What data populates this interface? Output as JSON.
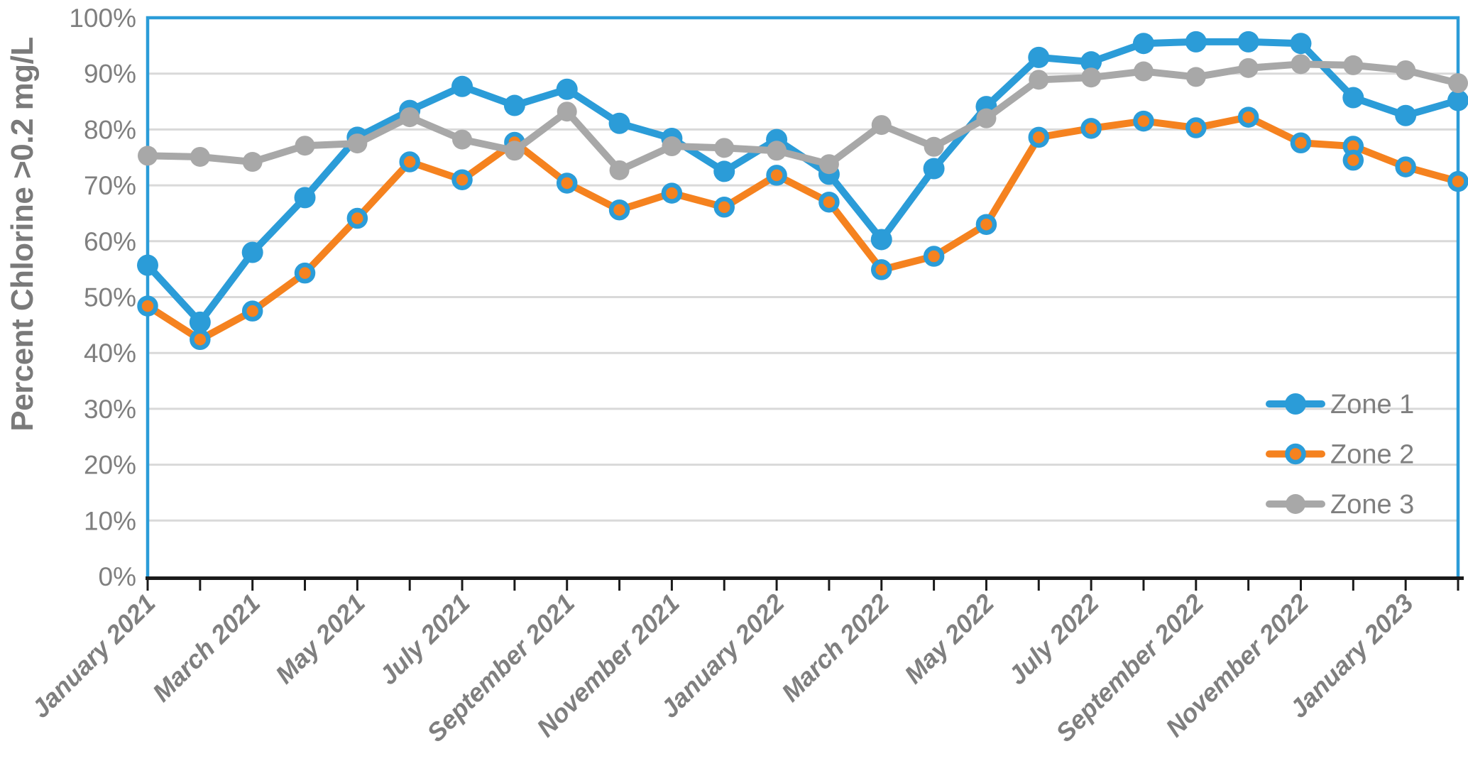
{
  "chart_data": {
    "type": "line",
    "title": "",
    "ylabel": "Percent Chlorine >0.2 mg/L",
    "xlabel": "",
    "ylim": [
      0,
      100
    ],
    "grid": "horizontal",
    "legend_position": "inside-right",
    "y_ticks": [
      "0%",
      "10%",
      "20%",
      "30%",
      "40%",
      "50%",
      "60%",
      "70%",
      "80%",
      "90%",
      "100%"
    ],
    "x_labeled_every": 2,
    "x_tick_labels_shown": [
      "January 2021",
      "March 2021",
      "May 2021",
      "July 2021",
      "September 2021",
      "November 2021",
      "January 2022",
      "March 2022",
      "May 2022",
      "July 2022",
      "September 2022",
      "November 2022",
      "January 2023"
    ],
    "categories": [
      "January 2021",
      "February 2021",
      "March 2021",
      "April 2021",
      "May 2021",
      "June 2021",
      "July 2021",
      "August 2021",
      "September 2021",
      "October 2021",
      "November 2021",
      "December 2021",
      "January 2022",
      "February 2022",
      "March 2022",
      "April 2022",
      "May 2022",
      "June 2022",
      "July 2022",
      "August 2022",
      "September 2022",
      "October 2022",
      "November 2022",
      "December 2022",
      "January 2023",
      "February 2023"
    ],
    "series": [
      {
        "name": "Zone 1",
        "color": "#2B9CD8",
        "line_width": 10,
        "marker": {
          "shape": "circle",
          "radius": 15,
          "fill": "#2B9CD8",
          "stroke": "none",
          "stroke_width": 0
        },
        "values": [
          55.7,
          45.5,
          58.0,
          67.8,
          78.6,
          83.4,
          87.7,
          84.3,
          87.2,
          81.1,
          78.4,
          72.5,
          78.2,
          72.0,
          60.3,
          73.0,
          84.1,
          92.9,
          92.1,
          95.4,
          95.7,
          95.7,
          95.4,
          85.7,
          82.5,
          85.2
        ]
      },
      {
        "name": "Zone 2",
        "color": "#F5821F",
        "line_width": 10,
        "marker": {
          "shape": "circle",
          "radius": 11.5,
          "fill": "#F5821F",
          "stroke": "#2B9CD8",
          "stroke_width": 6.5
        },
        "values": [
          48.4,
          42.4,
          47.5,
          54.3,
          64.1,
          74.2,
          71.0,
          77.7,
          70.4,
          65.6,
          68.6,
          66.1,
          71.8,
          67.0,
          54.9,
          57.3,
          63.0,
          78.6,
          80.2,
          81.5,
          80.3,
          82.2,
          77.6,
          77.0,
          73.3,
          70.7
        ]
      },
      {
        "name": "Zone 3",
        "color": "#A8A8A8",
        "line_width": 10,
        "marker": {
          "shape": "circle",
          "radius": 14,
          "fill": "#A8A8A8",
          "stroke": "none",
          "stroke_width": 0
        },
        "values": [
          75.3,
          75.1,
          74.2,
          77.1,
          77.5,
          82.2,
          78.2,
          76.2,
          83.2,
          72.7,
          77.0,
          76.7,
          76.2,
          73.8,
          80.8,
          76.9,
          82.0,
          88.9,
          89.3,
          90.4,
          89.4,
          91.0,
          91.7,
          91.5,
          90.6,
          88.3
        ]
      }
    ],
    "extra_markers": [
      {
        "series": "Zone 2",
        "category": "December 2022",
        "value": 74.5
      }
    ],
    "colors": {
      "plot_border": "#2B9CD8",
      "grid": "#D9D9D9",
      "axis": "#1A1A1A",
      "tick_label": "#7F7F7F",
      "axis_title": "#7A7A7A",
      "legend_label": "#7F7F7F",
      "background": "#FFFFFF"
    }
  }
}
